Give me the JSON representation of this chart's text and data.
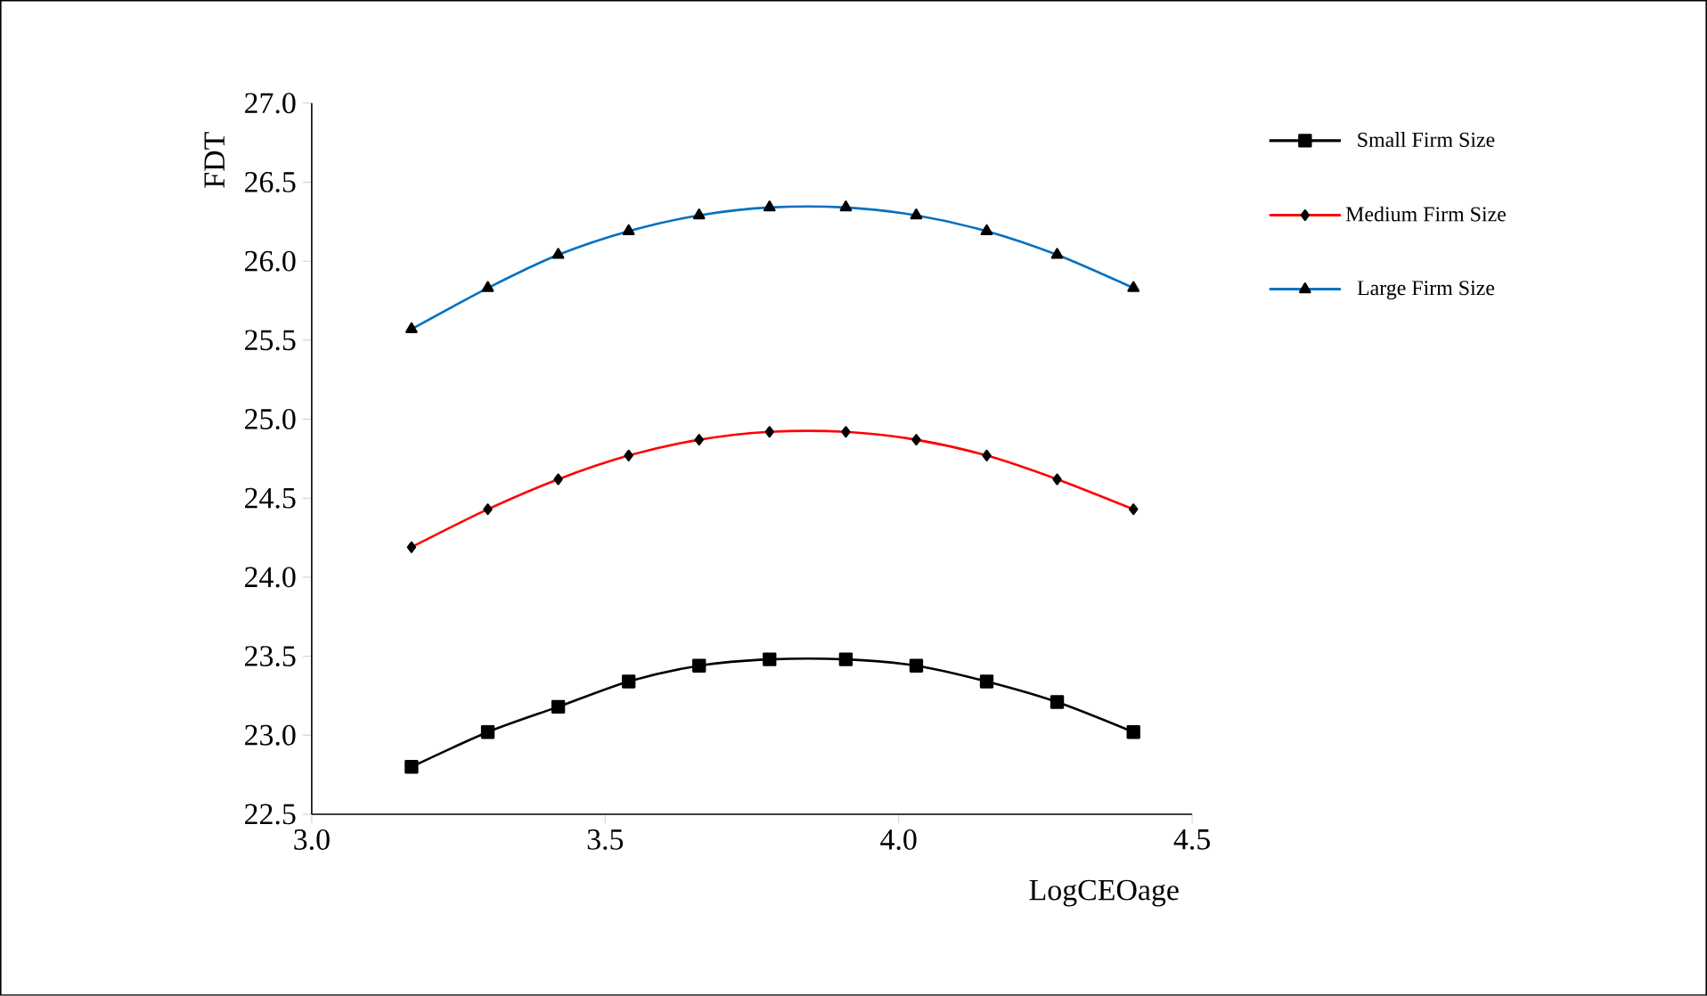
{
  "chart_data": {
    "type": "line",
    "xlabel": "LogCEOage",
    "ylabel": "FDT",
    "x": [
      3.17,
      3.3,
      3.42,
      3.54,
      3.66,
      3.78,
      3.91,
      4.03,
      4.15,
      4.27,
      4.4
    ],
    "series": [
      {
        "name": "Small Firm Size",
        "color": "#000000",
        "marker": "square",
        "values": [
          22.8,
          23.02,
          23.18,
          23.34,
          23.44,
          23.48,
          23.48,
          23.44,
          23.34,
          23.21,
          23.02
        ]
      },
      {
        "name": "Medium Firm Size",
        "color": "#ff0000",
        "marker": "diamond",
        "values": [
          24.19,
          24.43,
          24.62,
          24.77,
          24.87,
          24.92,
          24.92,
          24.87,
          24.77,
          24.62,
          24.43
        ]
      },
      {
        "name": "Large Firm Size",
        "color": "#0070c0",
        "marker": "triangle",
        "values": [
          25.57,
          25.83,
          26.04,
          26.19,
          26.29,
          26.34,
          26.34,
          26.29,
          26.19,
          26.04,
          25.83
        ]
      }
    ],
    "xlim": [
      3.0,
      4.5
    ],
    "xticks": [
      {
        "value": 3.0,
        "label": "3.0"
      },
      {
        "value": 3.5,
        "label": "3.5"
      },
      {
        "value": 4.0,
        "label": "4.0"
      },
      {
        "value": 4.5,
        "label": "4.5"
      }
    ],
    "ylim": [
      22.5,
      27.0
    ],
    "yticks": [
      {
        "value": 22.5,
        "label": "22.5"
      },
      {
        "value": 23.0,
        "label": "23.0"
      },
      {
        "value": 23.5,
        "label": "23.5"
      },
      {
        "value": 24.0,
        "label": "24.0"
      },
      {
        "value": 24.5,
        "label": "24.5"
      },
      {
        "value": 25.0,
        "label": "25.0"
      },
      {
        "value": 25.5,
        "label": "25.5"
      },
      {
        "value": 26.0,
        "label": "26.0"
      },
      {
        "value": 26.5,
        "label": "26.5"
      },
      {
        "value": 27.0,
        "label": "27.0"
      }
    ],
    "legend": "right",
    "line_style": "solid"
  }
}
